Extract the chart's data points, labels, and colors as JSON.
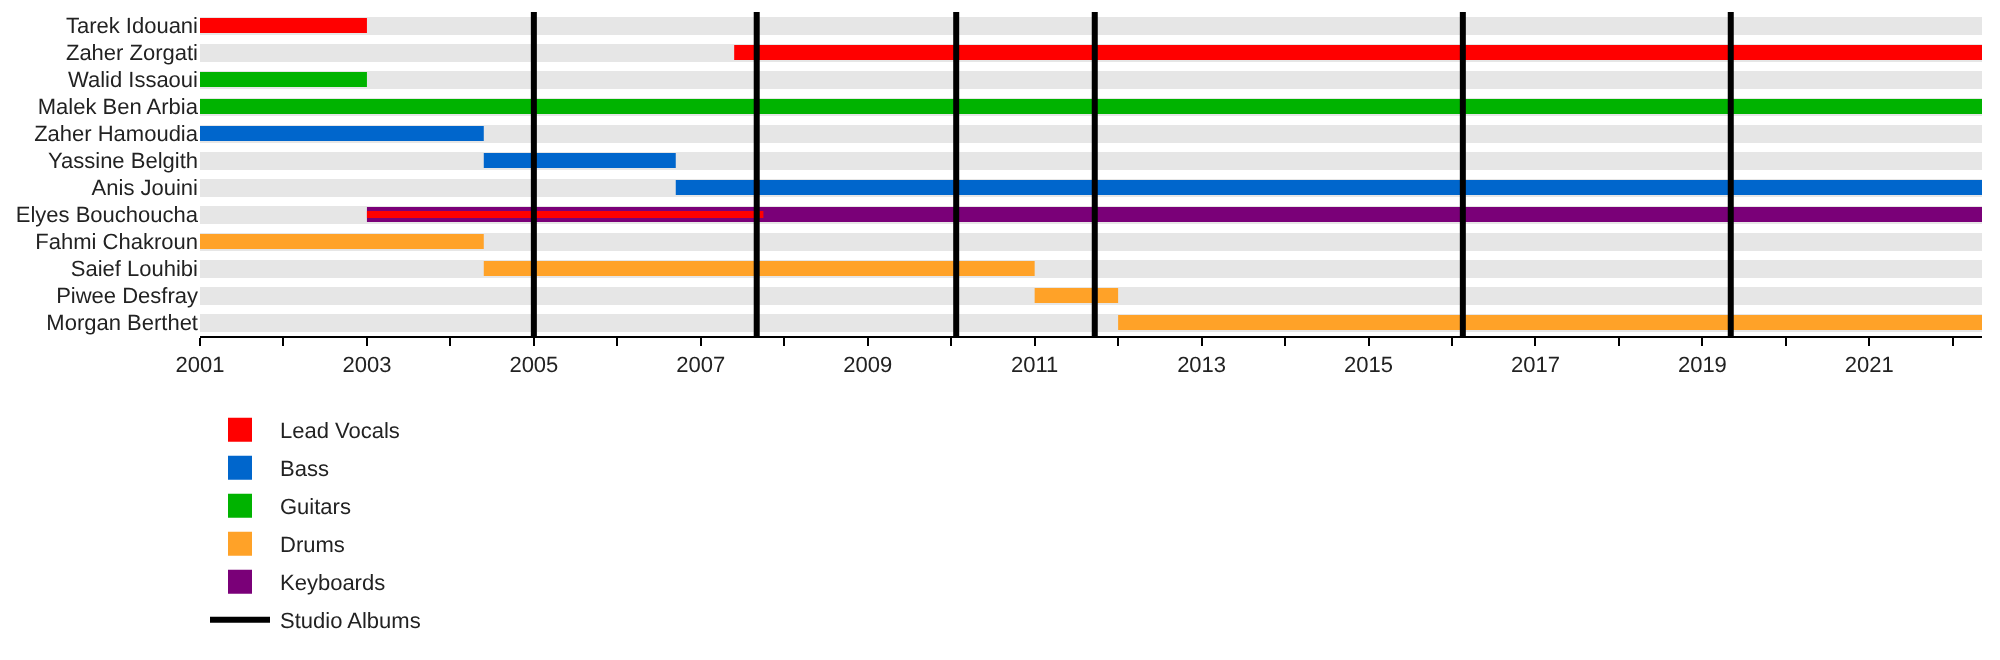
{
  "chart_data": {
    "type": "bar",
    "orientation": "horizontal",
    "categories": [
      "Tarek Idouani",
      "Zaher Zorgati",
      "Walid Issaoui",
      "Malek Ben Arbia",
      "Zaher Hamoudia",
      "Yassine Belgith",
      "Anis Jouini",
      "Elyes Bouchoucha",
      "Fahmi Chakroun",
      "Saief Louhibi",
      "Piwee Desfray",
      "Morgan Berthet"
    ],
    "series": [
      {
        "name": "Lead Vocals",
        "color": "#ff0000",
        "base": [
          2001,
          2007.4,
          null,
          null,
          null,
          null,
          null,
          2003,
          null,
          null,
          null,
          null
        ],
        "values": [
          2.0,
          14.95,
          null,
          null,
          null,
          null,
          null,
          4.75,
          null,
          null,
          null,
          null
        ]
      },
      {
        "name": "Guitars",
        "color": "#00b300",
        "base": [
          null,
          null,
          2001,
          2001,
          null,
          null,
          null,
          null,
          null,
          null,
          null,
          null
        ],
        "values": [
          null,
          null,
          2.0,
          21.35,
          null,
          null,
          null,
          null,
          null,
          null,
          null,
          null
        ]
      },
      {
        "name": "Keyboards",
        "color": "#7a0078",
        "base": [
          null,
          null,
          null,
          null,
          null,
          null,
          null,
          2003,
          null,
          null,
          null,
          null
        ],
        "values": [
          null,
          null,
          null,
          null,
          null,
          null,
          null,
          19.35,
          null,
          null,
          null,
          null
        ]
      },
      {
        "name": "Bass",
        "color": "#0066cc",
        "base": [
          null,
          null,
          null,
          null,
          2001,
          2004.4,
          2006.7,
          null,
          null,
          null,
          null,
          null
        ],
        "values": [
          null,
          null,
          null,
          null,
          3.4,
          2.3,
          15.65,
          null,
          null,
          null,
          null,
          null
        ]
      },
      {
        "name": "Drums",
        "color": "#ffa228",
        "base": [
          null,
          null,
          null,
          null,
          null,
          null,
          null,
          null,
          2001,
          2004.4,
          2011,
          2012
        ],
        "values": [
          null,
          null,
          null,
          null,
          null,
          null,
          null,
          null,
          3.4,
          6.6,
          1.0,
          10.35
        ]
      }
    ],
    "ref_lines": [
      {
        "axis": "x",
        "value": 2005,
        "label": "Studio Albums",
        "color": "#000000"
      },
      {
        "axis": "x",
        "value": 2007.67,
        "color": "#000000"
      },
      {
        "axis": "x",
        "value": 2010.06,
        "color": "#000000"
      },
      {
        "axis": "x",
        "value": 2011.72,
        "color": "#000000"
      },
      {
        "axis": "x",
        "value": 2016.13,
        "color": "#000000"
      },
      {
        "axis": "x",
        "value": 2019.34,
        "color": "#000000"
      }
    ],
    "xlim": [
      2001,
      2022.35
    ],
    "xticks": [
      2001,
      {
        "value": 2002,
        "label": null
      },
      2003,
      {
        "value": 2004,
        "label": null
      },
      2005,
      {
        "value": 2006,
        "label": null
      },
      2007,
      {
        "value": 2008,
        "label": null
      },
      2009,
      {
        "value": 2010,
        "label": null
      },
      2011,
      {
        "value": 2012,
        "label": null
      },
      2013,
      {
        "value": 2014,
        "label": null
      },
      2015,
      {
        "value": 2016,
        "label": null
      },
      2017,
      {
        "value": 2018,
        "label": null
      },
      2019,
      {
        "value": 2020,
        "label": null
      },
      2021,
      {
        "value": 2022,
        "label": null
      }
    ],
    "grid": "y",
    "legend": "bottom"
  }
}
